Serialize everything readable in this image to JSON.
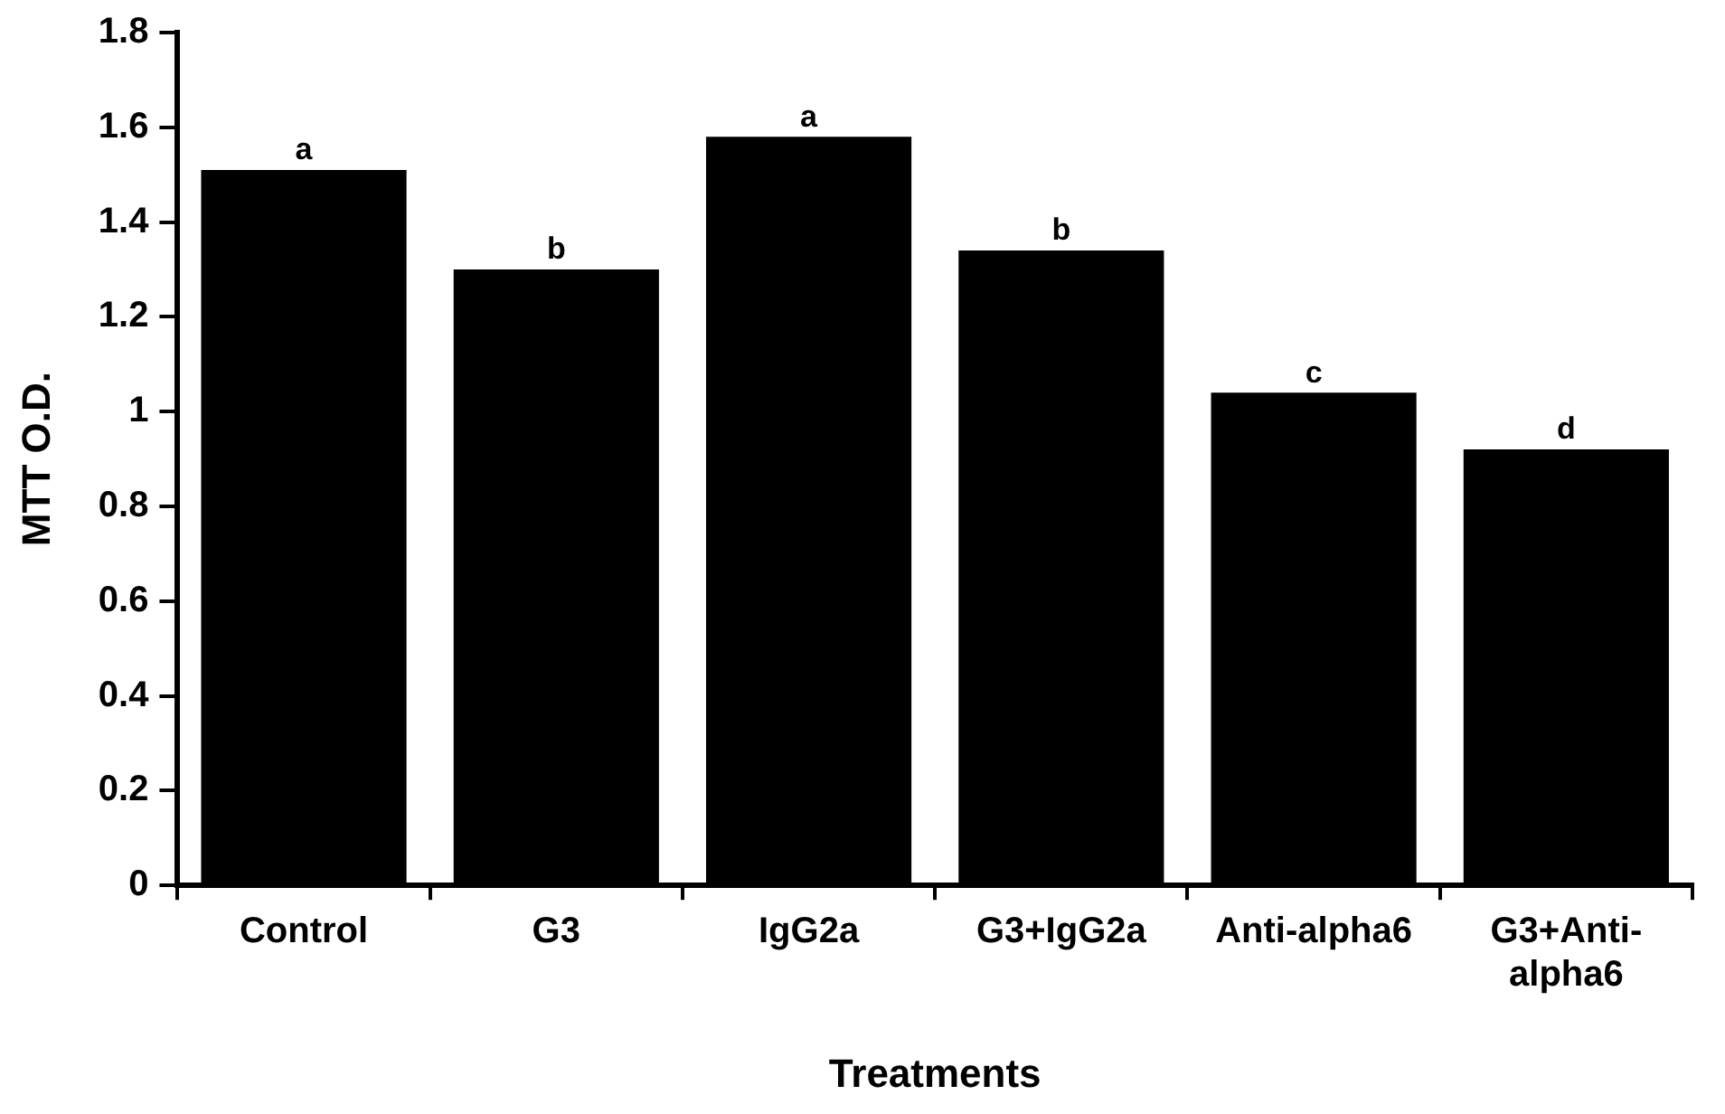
{
  "chart_data": {
    "type": "bar",
    "xlabel": "Treatments",
    "ylabel": "MTT O.D.",
    "categories": [
      "Control",
      "G3",
      "IgG2a",
      "G3+IgG2a",
      "Anti-alpha6",
      "G3+Anti-alpha6"
    ],
    "values": [
      1.51,
      1.3,
      1.58,
      1.34,
      1.04,
      0.92
    ],
    "color": "#000000",
    "value_labels": [
      "a",
      "b",
      "a",
      "b",
      "c",
      "d"
    ],
    "ylim": [
      0,
      1.8
    ],
    "yticks": [
      0,
      0.2,
      0.4,
      0.6,
      0.8,
      1,
      1.2,
      1.4,
      1.6,
      1.8
    ],
    "grid": false,
    "legend": false
  }
}
